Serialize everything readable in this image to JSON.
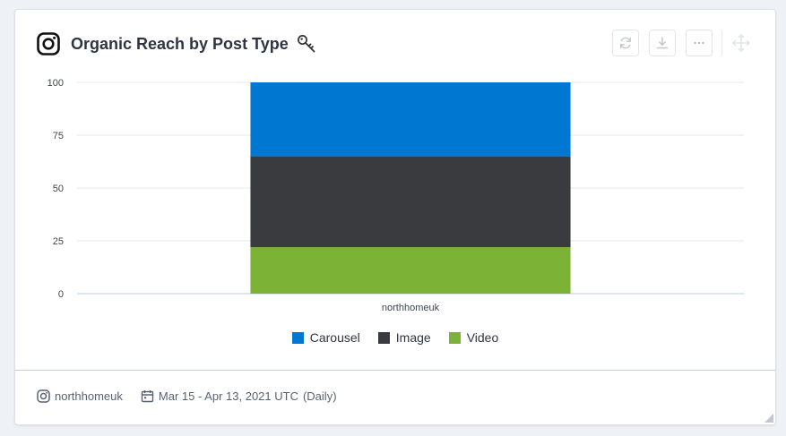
{
  "widget": {
    "title": "Organic Reach by Post Type",
    "account": "northhomeuk",
    "date_range": "Mar 15 - Apr 13, 2021 UTC",
    "granularity": "(Daily)",
    "icons": [
      "instagram-icon",
      "key-icon",
      "refresh-icon",
      "download-icon",
      "more-icon",
      "move-icon",
      "calendar-icon",
      "resize-handle-icon"
    ]
  },
  "colors": {
    "carousel": "#0078d2",
    "image": "#3a3b3f",
    "video": "#7cb235",
    "grid": "#e4e7eb",
    "axis": "#b9cde6"
  },
  "chart_data": {
    "type": "bar",
    "stacked": true,
    "categories": [
      "northhomeuk"
    ],
    "series": [
      {
        "name": "Video",
        "values": [
          22
        ]
      },
      {
        "name": "Image",
        "values": [
          43
        ]
      },
      {
        "name": "Carousel",
        "values": [
          35
        ]
      }
    ],
    "y_ticks": [
      "0",
      "25",
      "50",
      "75",
      "100"
    ],
    "ylim": [
      0,
      100
    ],
    "grid": true,
    "legend_position": "bottom"
  }
}
